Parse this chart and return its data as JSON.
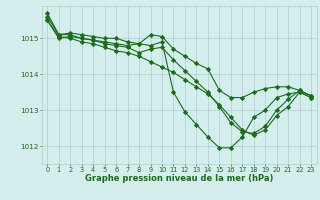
{
  "series": [
    {
      "x": [
        0,
        1,
        2,
        3,
        4,
        5,
        6,
        7,
        8,
        9,
        10,
        11,
        12,
        13,
        14,
        15,
        16,
        17,
        18,
        19,
        20,
        21,
        22,
        23
      ],
      "y": [
        1015.7,
        1015.1,
        1015.15,
        1015.1,
        1015.05,
        1015.0,
        1015.0,
        1014.9,
        1014.85,
        1015.1,
        1015.05,
        1014.7,
        1014.5,
        1014.3,
        1014.15,
        1013.55,
        1013.35,
        1013.35,
        1013.5,
        1013.6,
        1013.65,
        1013.65,
        1013.55,
        1013.4
      ]
    },
    {
      "x": [
        0,
        1,
        2,
        3,
        4,
        5,
        6,
        7,
        8,
        9,
        10,
        11,
        12,
        13,
        14,
        15,
        16,
        17,
        18,
        19,
        20,
        21,
        22,
        23
      ],
      "y": [
        1015.6,
        1015.1,
        1015.1,
        1015.0,
        1014.95,
        1014.85,
        1014.8,
        1014.75,
        1014.6,
        1014.7,
        1014.75,
        1014.4,
        1014.1,
        1013.8,
        1013.5,
        1013.1,
        1012.65,
        1012.4,
        1012.35,
        1012.55,
        1013.0,
        1013.3,
        1013.55,
        1013.4
      ]
    },
    {
      "x": [
        0,
        1,
        2,
        3,
        4,
        5,
        6,
        7,
        8,
        9,
        10,
        11,
        12,
        13,
        14,
        15,
        16,
        17,
        18,
        19,
        20,
        21,
        22,
        23
      ],
      "y": [
        1015.5,
        1015.05,
        1015.0,
        1014.9,
        1014.85,
        1014.75,
        1014.65,
        1014.6,
        1014.5,
        1014.35,
        1014.2,
        1014.05,
        1013.85,
        1013.65,
        1013.45,
        1013.15,
        1012.8,
        1012.45,
        1012.3,
        1012.45,
        1012.85,
        1013.1,
        1013.5,
        1013.35
      ]
    },
    {
      "x": [
        0,
        1,
        2,
        3,
        4,
        5,
        6,
        7,
        8,
        9,
        10,
        11,
        12,
        13,
        14,
        15,
        16,
        17,
        18,
        19,
        20,
        21,
        22,
        23
      ],
      "y": [
        1015.5,
        1015.0,
        1015.05,
        1015.0,
        1014.95,
        1014.9,
        1014.85,
        1014.8,
        1014.85,
        1014.8,
        1014.9,
        1013.5,
        1012.95,
        1012.6,
        1012.25,
        1011.95,
        1011.95,
        1012.25,
        1012.8,
        1013.0,
        1013.35,
        1013.45,
        1013.5,
        1013.35
      ]
    }
  ],
  "line_color": "#1a6b1a",
  "marker": "D",
  "markersize": 2.2,
  "linewidth": 0.8,
  "bg_color": "#d4eeee",
  "grid_color": "#b0cccc",
  "xlabel": "Graphe pression niveau de la mer (hPa)",
  "xlabel_color": "#1a6b1a",
  "xlabel_fontsize": 6.0,
  "xtick_fontsize": 4.8,
  "ytick_fontsize": 5.2,
  "tick_color": "#1a6b1a",
  "xlim": [
    -0.5,
    23.5
  ],
  "ylim": [
    1011.5,
    1015.9
  ],
  "yticks": [
    1012,
    1013,
    1014,
    1015
  ],
  "xticks": [
    0,
    1,
    2,
    3,
    4,
    5,
    6,
    7,
    8,
    9,
    10,
    11,
    12,
    13,
    14,
    15,
    16,
    17,
    18,
    19,
    20,
    21,
    22,
    23
  ]
}
